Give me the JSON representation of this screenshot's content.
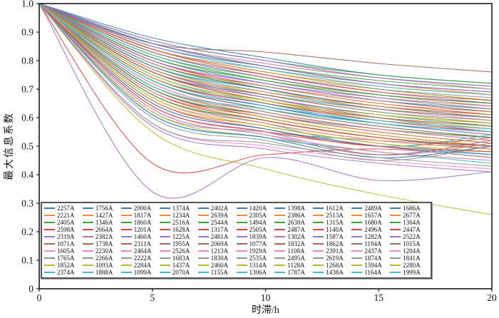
{
  "chart_data": {
    "type": "line",
    "title": "",
    "xlabel": "时滞/h",
    "ylabel": "最大信息系数",
    "xlim": [
      0,
      20
    ],
    "ylim": [
      0,
      1.0
    ],
    "x_tick_labels": [
      "0",
      "5",
      "10",
      "15",
      "20"
    ],
    "x_tick_values": [
      0,
      5,
      10,
      15,
      20
    ],
    "y_tick_labels": [
      "0",
      "0.1",
      "0.2",
      "0.3",
      "0.4",
      "0.5",
      "0.6",
      "0.7",
      "0.8",
      "0.9",
      "1.0"
    ],
    "y_tick_values": [
      0,
      0.1,
      0.2,
      0.3,
      0.4,
      0.5,
      0.6,
      0.7,
      0.8,
      0.9,
      1.0
    ],
    "grid": false,
    "legend_position": "lower-left-inside",
    "legend_columns": 10,
    "legend_order": "column-major",
    "palette": [
      "#3e79b4",
      "#f58a3c",
      "#3da23d",
      "#d94545",
      "#a273c5",
      "#9a6a5d",
      "#e887c4",
      "#949494",
      "#b8ba30",
      "#3dbecf"
    ],
    "x_samples": [
      0,
      5,
      10,
      15,
      20
    ],
    "series_format": "n = station name, c = palette color index, v = MIC values at x_samples (estimated from plot)",
    "series": [
      {
        "n": "2257A",
        "c": 0,
        "v": [
          1,
          0.84,
          0.76,
          0.7,
          0.66
        ]
      },
      {
        "n": "2221A",
        "c": 1,
        "v": [
          1,
          0.8,
          0.7,
          0.63,
          0.59
        ]
      },
      {
        "n": "2405A",
        "c": 2,
        "v": [
          1,
          0.86,
          0.79,
          0.74,
          0.71
        ]
      },
      {
        "n": "2598A",
        "c": 3,
        "v": [
          1,
          0.72,
          0.62,
          0.56,
          0.52
        ]
      },
      {
        "n": "2319A",
        "c": 4,
        "v": [
          1,
          0.77,
          0.67,
          0.6,
          0.55
        ]
      },
      {
        "n": "1071A",
        "c": 5,
        "v": [
          1,
          0.86,
          0.83,
          0.79,
          0.76
        ]
      },
      {
        "n": "1605A",
        "c": 6,
        "v": [
          1,
          0.75,
          0.66,
          0.6,
          0.57
        ]
      },
      {
        "n": "1765A",
        "c": 7,
        "v": [
          1,
          0.62,
          0.55,
          0.52,
          0.5
        ]
      },
      {
        "n": "1852A",
        "c": 8,
        "v": [
          1,
          0.55,
          0.42,
          0.33,
          0.26
        ]
      },
      {
        "n": "2374A",
        "c": 9,
        "v": [
          1,
          0.79,
          0.7,
          0.64,
          0.6
        ]
      },
      {
        "n": "1756A",
        "c": 0,
        "v": [
          1,
          0.88,
          0.81,
          0.75,
          0.72
        ]
      },
      {
        "n": "1427A",
        "c": 1,
        "v": [
          1,
          0.74,
          0.64,
          0.58,
          0.54
        ]
      },
      {
        "n": "1346A",
        "c": 2,
        "v": [
          1,
          0.82,
          0.73,
          0.67,
          0.63
        ]
      },
      {
        "n": "2664A",
        "c": 3,
        "v": [
          1,
          0.66,
          0.56,
          0.5,
          0.53
        ]
      },
      {
        "n": "2382A",
        "c": 4,
        "v": [
          1,
          0.34,
          0.46,
          0.38,
          0.41
        ]
      },
      {
        "n": "1738A",
        "c": 5,
        "v": [
          1,
          0.8,
          0.72,
          0.66,
          0.62
        ]
      },
      {
        "n": "2230A",
        "c": 6,
        "v": [
          1,
          0.7,
          0.6,
          0.54,
          0.5
        ]
      },
      {
        "n": "2266A",
        "c": 7,
        "v": [
          1,
          0.84,
          0.77,
          0.72,
          0.69
        ]
      },
      {
        "n": "1093A",
        "c": 8,
        "v": [
          1,
          0.76,
          0.66,
          0.59,
          0.55
        ]
      },
      {
        "n": "1888A",
        "c": 9,
        "v": [
          1,
          0.68,
          0.58,
          0.5,
          0.54
        ]
      },
      {
        "n": "2000A",
        "c": 0,
        "v": [
          1,
          0.81,
          0.72,
          0.66,
          0.62
        ]
      },
      {
        "n": "1817A",
        "c": 1,
        "v": [
          1,
          0.86,
          0.78,
          0.72,
          0.68
        ]
      },
      {
        "n": "1860A",
        "c": 2,
        "v": [
          1,
          0.73,
          0.63,
          0.57,
          0.53
        ]
      },
      {
        "n": "1201A",
        "c": 3,
        "v": [
          1,
          0.44,
          0.47,
          0.49,
          0.46
        ]
      },
      {
        "n": "1460A",
        "c": 4,
        "v": [
          1,
          0.83,
          0.75,
          0.69,
          0.65
        ]
      },
      {
        "n": "2311A",
        "c": 5,
        "v": [
          1,
          0.71,
          0.61,
          0.55,
          0.51
        ]
      },
      {
        "n": "2464A",
        "c": 6,
        "v": [
          1,
          0.78,
          0.69,
          0.63,
          0.59
        ]
      },
      {
        "n": "2222A",
        "c": 7,
        "v": [
          1,
          0.65,
          0.56,
          0.5,
          0.46
        ]
      },
      {
        "n": "2284A",
        "c": 8,
        "v": [
          1,
          0.84,
          0.76,
          0.7,
          0.66
        ]
      },
      {
        "n": "1099A",
        "c": 9,
        "v": [
          1,
          0.75,
          0.65,
          0.58,
          0.54
        ]
      },
      {
        "n": "1374A",
        "c": 0,
        "v": [
          1,
          0.7,
          0.61,
          0.55,
          0.51
        ]
      },
      {
        "n": "1234A",
        "c": 1,
        "v": [
          1,
          0.82,
          0.74,
          0.68,
          0.64
        ]
      },
      {
        "n": "2516A",
        "c": 2,
        "v": [
          1,
          0.87,
          0.8,
          0.75,
          0.72
        ]
      },
      {
        "n": "1628A",
        "c": 3,
        "v": [
          1,
          0.76,
          0.66,
          0.6,
          0.56
        ]
      },
      {
        "n": "1225A",
        "c": 4,
        "v": [
          1,
          0.64,
          0.55,
          0.47,
          0.51
        ]
      },
      {
        "n": "1955A",
        "c": 5,
        "v": [
          1,
          0.79,
          0.7,
          0.64,
          0.6
        ]
      },
      {
        "n": "2526A",
        "c": 6,
        "v": [
          1,
          0.58,
          0.5,
          0.45,
          0.42
        ]
      },
      {
        "n": "1683A",
        "c": 7,
        "v": [
          1,
          0.83,
          0.75,
          0.7,
          0.67
        ]
      },
      {
        "n": "1437A",
        "c": 8,
        "v": [
          1,
          0.72,
          0.62,
          0.56,
          0.52
        ]
      },
      {
        "n": "2070A",
        "c": 9,
        "v": [
          1,
          0.66,
          0.57,
          0.51,
          0.47
        ]
      },
      {
        "n": "2402A",
        "c": 0,
        "v": [
          1,
          0.77,
          0.68,
          0.62,
          0.58
        ]
      },
      {
        "n": "2639A",
        "c": 1,
        "v": [
          1,
          0.71,
          0.61,
          0.55,
          0.51
        ]
      },
      {
        "n": "2544A",
        "c": 2,
        "v": [
          1,
          0.85,
          0.78,
          0.73,
          0.7
        ]
      },
      {
        "n": "1317A",
        "c": 3,
        "v": [
          1,
          0.8,
          0.71,
          0.65,
          0.61
        ]
      },
      {
        "n": "2481A",
        "c": 4,
        "v": [
          1,
          0.74,
          0.64,
          0.58,
          0.54
        ]
      },
      {
        "n": "2069A",
        "c": 5,
        "v": [
          1,
          0.68,
          0.59,
          0.53,
          0.49
        ]
      },
      {
        "n": "1213A",
        "c": 6,
        "v": [
          1,
          0.86,
          0.79,
          0.74,
          0.7
        ]
      },
      {
        "n": "1830A",
        "c": 7,
        "v": [
          1,
          0.6,
          0.52,
          0.45,
          0.5
        ]
      },
      {
        "n": "2460A",
        "c": 8,
        "v": [
          1,
          0.78,
          0.68,
          0.62,
          0.58
        ]
      },
      {
        "n": "1155A",
        "c": 9,
        "v": [
          1,
          0.82,
          0.74,
          0.68,
          0.65
        ]
      },
      {
        "n": "1420A",
        "c": 0,
        "v": [
          1,
          0.65,
          0.56,
          0.5,
          0.47
        ]
      },
      {
        "n": "2305A",
        "c": 1,
        "v": [
          1,
          0.84,
          0.76,
          0.71,
          0.68
        ]
      },
      {
        "n": "1494A",
        "c": 2,
        "v": [
          1,
          0.76,
          0.67,
          0.61,
          0.57
        ]
      },
      {
        "n": "2505A",
        "c": 3,
        "v": [
          1,
          0.7,
          0.6,
          0.54,
          0.5
        ]
      },
      {
        "n": "1839A",
        "c": 4,
        "v": [
          1,
          0.87,
          0.8,
          0.74,
          0.71
        ]
      },
      {
        "n": "1077A",
        "c": 5,
        "v": [
          1,
          0.73,
          0.63,
          0.57,
          0.53
        ]
      },
      {
        "n": "1929A",
        "c": 6,
        "v": [
          1,
          0.67,
          0.58,
          0.52,
          0.49
        ]
      },
      {
        "n": "2535A",
        "c": 7,
        "v": [
          1,
          0.81,
          0.73,
          0.67,
          0.63
        ]
      },
      {
        "n": "1314A",
        "c": 8,
        "v": [
          1,
          0.62,
          0.53,
          0.48,
          0.45
        ]
      },
      {
        "n": "1306A",
        "c": 9,
        "v": [
          1,
          0.78,
          0.69,
          0.63,
          0.6
        ]
      },
      {
        "n": "1398A",
        "c": 0,
        "v": [
          1,
          0.86,
          0.78,
          0.72,
          0.69
        ]
      },
      {
        "n": "2386A",
        "c": 1,
        "v": [
          1,
          0.68,
          0.58,
          0.52,
          0.49
        ]
      },
      {
        "n": "2638A",
        "c": 2,
        "v": [
          1,
          0.79,
          0.7,
          0.64,
          0.61
        ]
      },
      {
        "n": "2487A",
        "c": 3,
        "v": [
          1,
          0.74,
          0.65,
          0.59,
          0.55
        ]
      },
      {
        "n": "1302A",
        "c": 4,
        "v": [
          1,
          0.57,
          0.49,
          0.44,
          0.41
        ]
      },
      {
        "n": "1832A",
        "c": 5,
        "v": [
          1,
          0.83,
          0.74,
          0.68,
          0.65
        ]
      },
      {
        "n": "1108A",
        "c": 6,
        "v": [
          1,
          0.72,
          0.62,
          0.56,
          0.53
        ]
      },
      {
        "n": "2495A",
        "c": 7,
        "v": [
          1,
          0.77,
          0.68,
          0.62,
          0.59
        ]
      },
      {
        "n": "1128A",
        "c": 8,
        "v": [
          1,
          0.69,
          0.6,
          0.54,
          0.5
        ]
      },
      {
        "n": "1787A",
        "c": 9,
        "v": [
          1,
          0.85,
          0.77,
          0.71,
          0.68
        ]
      },
      {
        "n": "1612A",
        "c": 0,
        "v": [
          1,
          0.73,
          0.64,
          0.58,
          0.55
        ]
      },
      {
        "n": "2513A",
        "c": 1,
        "v": [
          1,
          0.79,
          0.71,
          0.65,
          0.62
        ]
      },
      {
        "n": "1315A",
        "c": 2,
        "v": [
          1,
          0.68,
          0.59,
          0.53,
          0.5
        ]
      },
      {
        "n": "1140A",
        "c": 3,
        "v": [
          1,
          0.84,
          0.75,
          0.69,
          0.66
        ]
      },
      {
        "n": "1587A",
        "c": 4,
        "v": [
          1,
          0.76,
          0.67,
          0.61,
          0.58
        ]
      },
      {
        "n": "1862A",
        "c": 5,
        "v": [
          1,
          0.63,
          0.54,
          0.47,
          0.52
        ]
      },
      {
        "n": "2391A",
        "c": 6,
        "v": [
          1,
          0.8,
          0.72,
          0.66,
          0.63
        ]
      },
      {
        "n": "2619A",
        "c": 7,
        "v": [
          1,
          0.71,
          0.62,
          0.56,
          0.52
        ]
      },
      {
        "n": "1268A",
        "c": 8,
        "v": [
          1,
          0.75,
          0.66,
          0.6,
          0.56
        ]
      },
      {
        "n": "1438A",
        "c": 9,
        "v": [
          1,
          0.61,
          0.53,
          0.48,
          0.44
        ]
      },
      {
        "n": "2489A",
        "c": 0,
        "v": [
          1,
          0.78,
          0.7,
          0.64,
          0.61
        ]
      },
      {
        "n": "1657A",
        "c": 1,
        "v": [
          1,
          0.66,
          0.57,
          0.51,
          0.48
        ]
      },
      {
        "n": "1680A",
        "c": 2,
        "v": [
          1,
          0.81,
          0.73,
          0.68,
          0.65
        ]
      },
      {
        "n": "2496A",
        "c": 3,
        "v": [
          1,
          0.69,
          0.59,
          0.53,
          0.5
        ]
      },
      {
        "n": "1282A",
        "c": 4,
        "v": [
          1,
          0.85,
          0.78,
          0.72,
          0.69
        ]
      },
      {
        "n": "1194A",
        "c": 5,
        "v": [
          1,
          0.74,
          0.65,
          0.6,
          0.57
        ]
      },
      {
        "n": "2437A",
        "c": 6,
        "v": [
          1,
          0.63,
          0.54,
          0.48,
          0.45
        ]
      },
      {
        "n": "1874A",
        "c": 7,
        "v": [
          1,
          0.79,
          0.71,
          0.66,
          0.63
        ]
      },
      {
        "n": "1594A",
        "c": 8,
        "v": [
          1,
          0.67,
          0.57,
          0.51,
          0.48
        ]
      },
      {
        "n": "1164A",
        "c": 9,
        "v": [
          1,
          0.73,
          0.64,
          0.59,
          0.56
        ]
      },
      {
        "n": "1686A",
        "c": 0,
        "v": [
          1,
          0.61,
          0.53,
          0.46,
          0.5
        ]
      },
      {
        "n": "2677A",
        "c": 1,
        "v": [
          1,
          0.77,
          0.69,
          0.64,
          0.61
        ]
      },
      {
        "n": "1364A",
        "c": 2,
        "v": [
          1,
          0.7,
          0.61,
          0.56,
          0.53
        ]
      },
      {
        "n": "2447A",
        "c": 3,
        "v": [
          1,
          0.64,
          0.55,
          0.5,
          0.48
        ]
      },
      {
        "n": "2522A",
        "c": 4,
        "v": [
          1,
          0.8,
          0.72,
          0.67,
          0.64
        ]
      },
      {
        "n": "1015A",
        "c": 5,
        "v": [
          1,
          0.76,
          0.68,
          0.63,
          0.6
        ]
      },
      {
        "n": "1204A",
        "c": 6,
        "v": [
          1,
          0.69,
          0.61,
          0.56,
          0.52
        ]
      },
      {
        "n": "1841A",
        "c": 7,
        "v": [
          1,
          0.58,
          0.51,
          0.46,
          0.43
        ]
      },
      {
        "n": "2280A",
        "c": 8,
        "v": [
          1,
          0.74,
          0.66,
          0.61,
          0.58
        ]
      },
      {
        "n": "1999A",
        "c": 9,
        "v": [
          1,
          0.71,
          0.63,
          0.58,
          0.55
        ]
      }
    ]
  }
}
